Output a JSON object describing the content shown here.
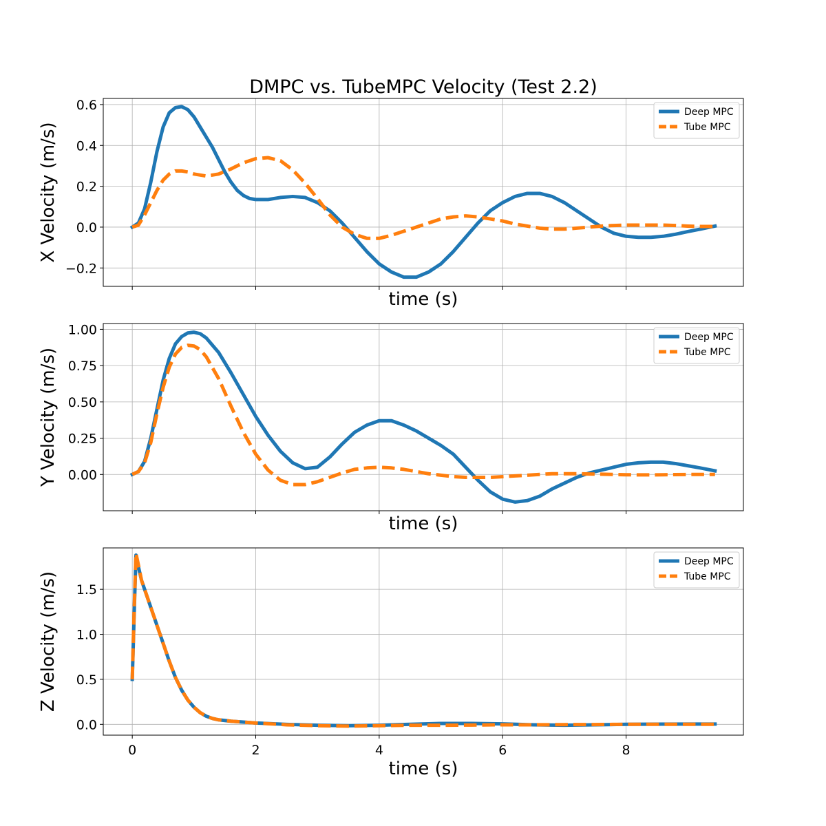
{
  "figure_title": "DMPC vs. TubeMPC Velocity (Test 2.2)",
  "chart_data": [
    {
      "type": "line",
      "title": "DMPC vs. TubeMPC Velocity (Test 2.2)",
      "xlabel": "time (s)",
      "ylabel": "X Velocity (m/s)",
      "xlim": [
        -0.47,
        9.9
      ],
      "ylim": [
        -0.29,
        0.63
      ],
      "xticks": [
        0,
        2,
        4,
        6,
        8
      ],
      "show_xtick_labels": false,
      "yticks": [
        -0.2,
        0.0,
        0.2,
        0.4,
        0.6
      ],
      "ytick_labels": [
        "−0.2",
        "0.0",
        "0.2",
        "0.4",
        "0.6"
      ],
      "grid": true,
      "legend": "top-right",
      "series": [
        {
          "name": "Deep MPC",
          "color": "#1f77b4",
          "style": "solid",
          "x": [
            0,
            0.1,
            0.2,
            0.3,
            0.4,
            0.5,
            0.6,
            0.7,
            0.8,
            0.9,
            1.0,
            1.1,
            1.2,
            1.3,
            1.4,
            1.5,
            1.6,
            1.7,
            1.8,
            1.9,
            2.0,
            2.2,
            2.4,
            2.6,
            2.8,
            3.0,
            3.2,
            3.4,
            3.6,
            3.8,
            4.0,
            4.2,
            4.4,
            4.6,
            4.8,
            5.0,
            5.2,
            5.4,
            5.6,
            5.8,
            6.0,
            6.2,
            6.4,
            6.6,
            6.8,
            7.0,
            7.2,
            7.4,
            7.6,
            7.8,
            8.0,
            8.2,
            8.4,
            8.6,
            8.8,
            9.0,
            9.2,
            9.44
          ],
          "y": [
            0,
            0.02,
            0.09,
            0.22,
            0.37,
            0.49,
            0.56,
            0.585,
            0.59,
            0.575,
            0.54,
            0.49,
            0.44,
            0.39,
            0.33,
            0.27,
            0.22,
            0.18,
            0.155,
            0.14,
            0.135,
            0.135,
            0.145,
            0.15,
            0.145,
            0.12,
            0.08,
            0.02,
            -0.05,
            -0.12,
            -0.18,
            -0.22,
            -0.245,
            -0.245,
            -0.22,
            -0.18,
            -0.12,
            -0.05,
            0.02,
            0.08,
            0.12,
            0.15,
            0.165,
            0.165,
            0.15,
            0.12,
            0.08,
            0.04,
            0.0,
            -0.03,
            -0.045,
            -0.05,
            -0.05,
            -0.045,
            -0.035,
            -0.022,
            -0.01,
            0.005
          ]
        },
        {
          "name": "Tube MPC",
          "color": "#ff7f0e",
          "style": "dashed",
          "x": [
            0,
            0.1,
            0.2,
            0.3,
            0.4,
            0.5,
            0.6,
            0.7,
            0.8,
            0.9,
            1.0,
            1.2,
            1.4,
            1.6,
            1.8,
            2.0,
            2.2,
            2.4,
            2.6,
            2.8,
            3.0,
            3.2,
            3.4,
            3.6,
            3.8,
            4.0,
            4.2,
            4.4,
            4.6,
            4.8,
            5.0,
            5.2,
            5.4,
            5.6,
            5.8,
            6.0,
            6.2,
            6.4,
            6.6,
            6.8,
            7.0,
            7.2,
            7.4,
            7.6,
            7.8,
            8.0,
            8.2,
            8.4,
            8.6,
            8.8,
            9.0,
            9.2,
            9.44
          ],
          "y": [
            0,
            0.01,
            0.06,
            0.12,
            0.18,
            0.23,
            0.26,
            0.275,
            0.275,
            0.27,
            0.26,
            0.25,
            0.26,
            0.285,
            0.315,
            0.335,
            0.34,
            0.325,
            0.28,
            0.215,
            0.14,
            0.06,
            0.0,
            -0.035,
            -0.055,
            -0.055,
            -0.04,
            -0.02,
            0.0,
            0.02,
            0.04,
            0.05,
            0.055,
            0.05,
            0.04,
            0.03,
            0.015,
            0.005,
            -0.005,
            -0.01,
            -0.01,
            -0.005,
            0.0,
            0.005,
            0.008,
            0.01,
            0.01,
            0.01,
            0.01,
            0.008,
            0.005,
            0.003,
            0.003
          ]
        }
      ]
    },
    {
      "type": "line",
      "xlabel": "time (s)",
      "ylabel": "Y Velocity (m/s)",
      "xlim": [
        -0.47,
        9.9
      ],
      "ylim": [
        -0.25,
        1.04
      ],
      "xticks": [
        0,
        2,
        4,
        6,
        8
      ],
      "show_xtick_labels": false,
      "yticks": [
        0.0,
        0.25,
        0.5,
        0.75,
        1.0
      ],
      "ytick_labels": [
        "0.00",
        "0.25",
        "0.50",
        "0.75",
        "1.00"
      ],
      "grid": true,
      "legend": "top-right",
      "series": [
        {
          "name": "Deep MPC",
          "color": "#1f77b4",
          "style": "solid",
          "x": [
            0,
            0.1,
            0.2,
            0.3,
            0.4,
            0.5,
            0.6,
            0.7,
            0.8,
            0.9,
            1.0,
            1.1,
            1.2,
            1.4,
            1.6,
            1.8,
            2.0,
            2.2,
            2.4,
            2.6,
            2.8,
            3.0,
            3.2,
            3.4,
            3.6,
            3.8,
            4.0,
            4.2,
            4.4,
            4.6,
            4.8,
            5.0,
            5.2,
            5.4,
            5.6,
            5.8,
            6.0,
            6.2,
            6.4,
            6.6,
            6.8,
            7.0,
            7.2,
            7.4,
            7.6,
            7.8,
            8.0,
            8.2,
            8.4,
            8.6,
            8.8,
            9.0,
            9.2,
            9.44
          ],
          "y": [
            0,
            0.02,
            0.09,
            0.25,
            0.45,
            0.65,
            0.8,
            0.9,
            0.95,
            0.975,
            0.98,
            0.97,
            0.94,
            0.84,
            0.7,
            0.55,
            0.4,
            0.27,
            0.16,
            0.08,
            0.04,
            0.05,
            0.12,
            0.21,
            0.29,
            0.34,
            0.37,
            0.37,
            0.34,
            0.3,
            0.25,
            0.2,
            0.14,
            0.05,
            -0.04,
            -0.12,
            -0.17,
            -0.19,
            -0.18,
            -0.15,
            -0.1,
            -0.06,
            -0.02,
            0.01,
            0.03,
            0.05,
            0.07,
            0.08,
            0.085,
            0.085,
            0.075,
            0.06,
            0.045,
            0.025
          ]
        },
        {
          "name": "Tube MPC",
          "color": "#ff7f0e",
          "style": "dashed",
          "x": [
            0,
            0.1,
            0.2,
            0.3,
            0.4,
            0.5,
            0.6,
            0.7,
            0.8,
            0.9,
            1.0,
            1.1,
            1.2,
            1.4,
            1.6,
            1.8,
            2.0,
            2.2,
            2.4,
            2.6,
            2.8,
            3.0,
            3.2,
            3.4,
            3.6,
            3.8,
            4.0,
            4.2,
            4.4,
            4.6,
            4.8,
            5.0,
            5.2,
            5.4,
            5.6,
            5.8,
            6.0,
            6.2,
            6.4,
            6.6,
            6.8,
            7.0,
            7.2,
            7.4,
            7.6,
            7.8,
            8.0,
            8.2,
            8.4,
            8.6,
            8.8,
            9.0,
            9.2,
            9.44
          ],
          "y": [
            0,
            0.02,
            0.08,
            0.22,
            0.42,
            0.6,
            0.74,
            0.83,
            0.875,
            0.89,
            0.885,
            0.86,
            0.81,
            0.66,
            0.47,
            0.29,
            0.14,
            0.03,
            -0.04,
            -0.07,
            -0.07,
            -0.05,
            -0.02,
            0.01,
            0.035,
            0.045,
            0.05,
            0.045,
            0.035,
            0.02,
            0.005,
            -0.005,
            -0.015,
            -0.02,
            -0.02,
            -0.02,
            -0.015,
            -0.01,
            -0.005,
            0.0,
            0.005,
            0.005,
            0.005,
            0.003,
            0.002,
            0.0,
            -0.002,
            -0.003,
            -0.003,
            -0.002,
            -0.001,
            0.0,
            0.0,
            0.0
          ]
        }
      ]
    },
    {
      "type": "line",
      "xlabel": "time (s)",
      "ylabel": "Z Velocity (m/s)",
      "xlim": [
        -0.47,
        9.9
      ],
      "ylim": [
        -0.12,
        1.96
      ],
      "xticks": [
        0,
        2,
        4,
        6,
        8
      ],
      "show_xtick_labels": true,
      "yticks": [
        0.0,
        0.5,
        1.0,
        1.5
      ],
      "ytick_labels": [
        "0.0",
        "0.5",
        "1.0",
        "1.5"
      ],
      "grid": true,
      "legend": "top-right",
      "series": [
        {
          "name": "Deep MPC",
          "color": "#1f77b4",
          "style": "solid",
          "x": [
            0,
            0.03,
            0.06,
            0.1,
            0.15,
            0.2,
            0.3,
            0.4,
            0.5,
            0.6,
            0.7,
            0.8,
            0.9,
            1.0,
            1.1,
            1.2,
            1.3,
            1.4,
            1.6,
            1.8,
            2.0,
            2.5,
            3.0,
            3.5,
            4.0,
            4.5,
            5.0,
            5.5,
            6.0,
            6.5,
            7.0,
            7.5,
            8.0,
            8.5,
            9.0,
            9.44
          ],
          "y": [
            0.5,
            1.2,
            1.88,
            1.75,
            1.6,
            1.5,
            1.3,
            1.1,
            0.9,
            0.7,
            0.52,
            0.38,
            0.27,
            0.19,
            0.13,
            0.09,
            0.065,
            0.05,
            0.035,
            0.025,
            0.015,
            0.0,
            -0.01,
            -0.015,
            -0.01,
            0.0,
            0.01,
            0.01,
            0.005,
            -0.005,
            -0.01,
            -0.005,
            0.0,
            0.002,
            0.003,
            0.003
          ]
        },
        {
          "name": "Tube MPC",
          "color": "#ff7f0e",
          "style": "dashed",
          "x": [
            0,
            0.03,
            0.06,
            0.1,
            0.15,
            0.2,
            0.3,
            0.4,
            0.5,
            0.6,
            0.7,
            0.8,
            0.9,
            1.0,
            1.1,
            1.2,
            1.3,
            1.4,
            1.6,
            1.8,
            2.0,
            2.5,
            3.0,
            3.5,
            4.0,
            4.5,
            5.0,
            5.5,
            6.0,
            6.5,
            7.0,
            7.5,
            8.0,
            8.5,
            9.0,
            9.44
          ],
          "y": [
            0.5,
            1.25,
            1.9,
            1.77,
            1.6,
            1.5,
            1.3,
            1.1,
            0.9,
            0.7,
            0.52,
            0.38,
            0.27,
            0.19,
            0.13,
            0.09,
            0.065,
            0.05,
            0.035,
            0.025,
            0.015,
            -0.005,
            -0.015,
            -0.02,
            -0.015,
            -0.01,
            -0.01,
            -0.008,
            -0.005,
            -0.005,
            -0.003,
            -0.002,
            0.0,
            0.0,
            0.0,
            0.0
          ]
        }
      ]
    }
  ]
}
